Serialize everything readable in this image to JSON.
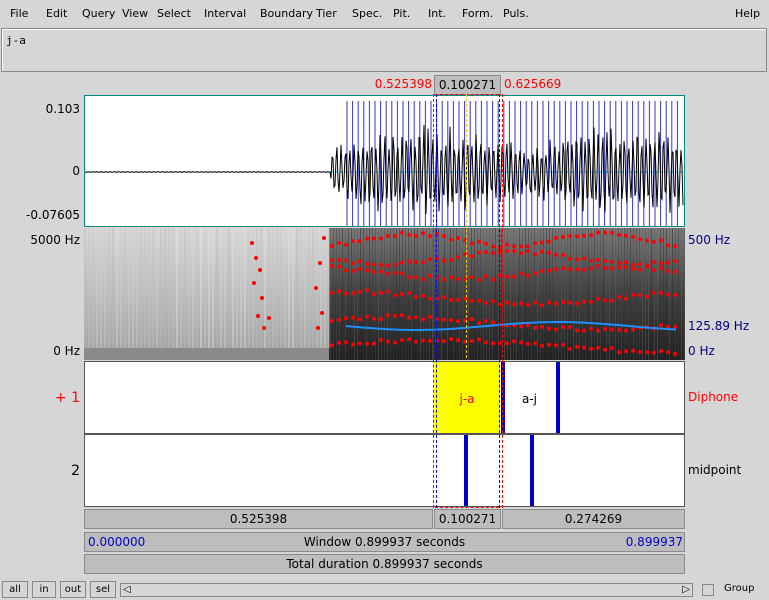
{
  "menu": [
    "File",
    "Edit",
    "Query",
    "View",
    "Select",
    "Interval",
    "Boundary",
    "Tier",
    "Spec.",
    "Pit.",
    "Int.",
    "Form.",
    "Puls."
  ],
  "help": "Help",
  "text_window": "j-a",
  "selection": {
    "start": "0.525398",
    "length": "0.100271",
    "end": "0.625669"
  },
  "wave_axis": {
    "top": "0.103",
    "zero": "0",
    "bottom": "-0.07605"
  },
  "spec_axis": {
    "top_left": "5000 Hz",
    "bottom_left": "0 Hz",
    "top_right": "500 Hz",
    "pitch_right": "125.89 Hz",
    "bottom_right": "0 Hz"
  },
  "tiers": [
    {
      "number": "+ 1",
      "name": "Diphone",
      "intervals": [
        "j-a",
        "a-j"
      ]
    },
    {
      "number": "2",
      "name": "midpoint"
    }
  ],
  "duration_bar": {
    "left": "0.525398",
    "mid": "0.100271",
    "right": "0.274269"
  },
  "window_bar": {
    "start": "0.000000",
    "label": "Window 0.899937 seconds",
    "end": "0.899937"
  },
  "total_bar": "Total duration 0.899937 seconds",
  "buttons": {
    "all": "all",
    "in": "in",
    "out": "out",
    "sel": "sel"
  },
  "group": "Group",
  "colors": {
    "selection_red": "#ff0000",
    "wave_border": "#008b8b",
    "pulse_blue": "#0000cc",
    "formant_red": "#ff0000",
    "pitch_cyan": "#1e90ff",
    "interval_yellow": "#ffff00",
    "axis_blue": "#000080"
  }
}
